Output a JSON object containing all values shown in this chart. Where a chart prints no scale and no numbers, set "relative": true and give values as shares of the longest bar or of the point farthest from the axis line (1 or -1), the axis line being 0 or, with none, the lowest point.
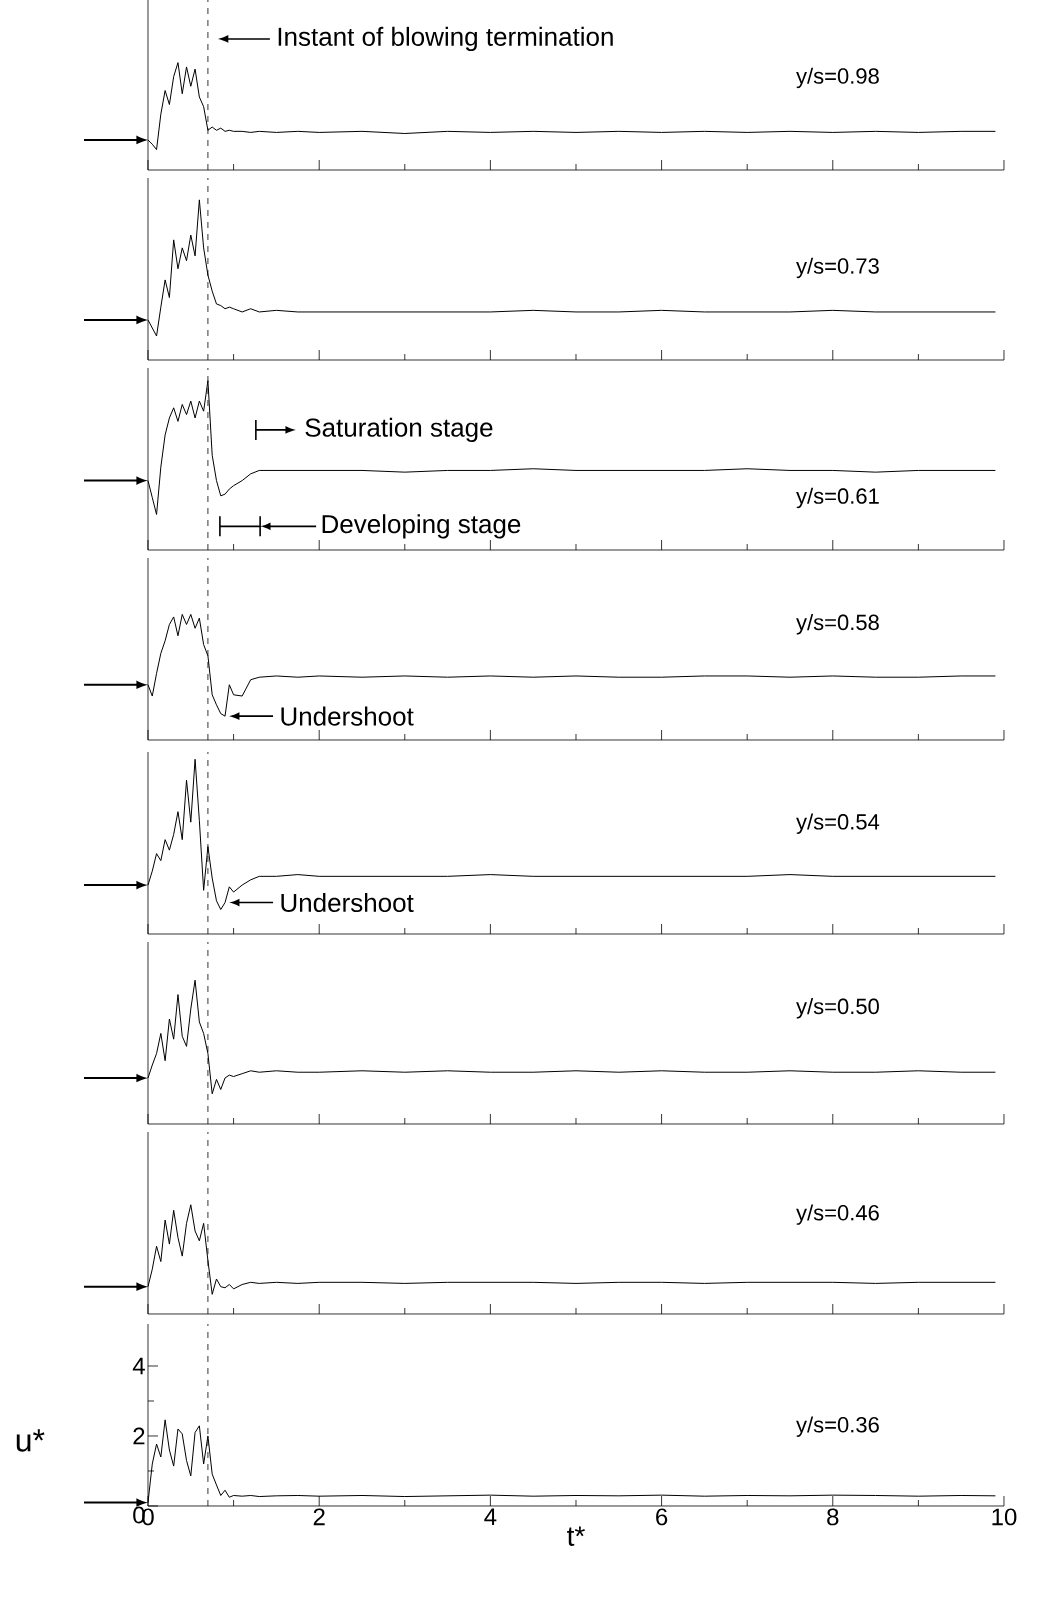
{
  "chart_data": [
    {
      "type": "line",
      "title": "y/s=0.98",
      "relative": true,
      "x": [
        0,
        0.05,
        0.1,
        0.15,
        0.2,
        0.25,
        0.3,
        0.35,
        0.4,
        0.45,
        0.5,
        0.55,
        0.6,
        0.65,
        0.7,
        0.75,
        0.8,
        0.85,
        0.9,
        0.95,
        1.0,
        1.1,
        1.2,
        1.3,
        1.5,
        1.75,
        2,
        2.5,
        3,
        3.5,
        4,
        4.5,
        5,
        5.5,
        6,
        6.5,
        7,
        7.5,
        8,
        8.5,
        9,
        9.5,
        9.9
      ],
      "series": [
        {
          "color": "#000000",
          "values": [
            0.28,
            0.24,
            0.19,
            0.52,
            0.74,
            0.61,
            0.87,
            1,
            0.71,
            0.96,
            0.78,
            0.94,
            0.68,
            0.59,
            0.37,
            0.4,
            0.37,
            0.39,
            0.36,
            0.37,
            0.36,
            0.36,
            0.35,
            0.36,
            0.35,
            0.36,
            0.35,
            0.36,
            0.34,
            0.36,
            0.35,
            0.36,
            0.35,
            0.36,
            0.35,
            0.36,
            0.35,
            0.36,
            0.35,
            0.36,
            0.35,
            0.36,
            0.36
          ]
        }
      ],
      "xlim": [
        0,
        10
      ],
      "xticks": [
        0,
        {
          "value": 1,
          "label": null
        },
        2,
        {
          "value": 3,
          "label": null
        },
        4,
        {
          "value": 5,
          "label": null
        },
        6,
        {
          "value": 7,
          "label": null
        },
        8,
        {
          "value": 9,
          "label": null
        },
        10
      ],
      "tick_labels": false,
      "ref_lines": [
        {
          "axis": "x",
          "value": 0.7,
          "label": "Instant of blowing termination",
          "line_style": "dashed"
        }
      ]
    },
    {
      "type": "line",
      "title": "y/s=0.73",
      "relative": true,
      "x": [
        0,
        0.05,
        0.1,
        0.15,
        0.2,
        0.25,
        0.3,
        0.35,
        0.4,
        0.45,
        0.5,
        0.55,
        0.6,
        0.65,
        0.7,
        0.75,
        0.8,
        0.85,
        0.9,
        0.95,
        1.0,
        1.1,
        1.2,
        1.3,
        1.5,
        1.75,
        2,
        2.5,
        3,
        3.5,
        4,
        4.5,
        5,
        5.5,
        6,
        6.5,
        7,
        7.5,
        8,
        8.5,
        9,
        9.5,
        9.9
      ],
      "series": [
        {
          "color": "#000000",
          "values": [
            0.25,
            0.2,
            0.15,
            0.33,
            0.5,
            0.39,
            0.75,
            0.57,
            0.7,
            0.62,
            0.78,
            0.65,
            1,
            0.7,
            0.53,
            0.43,
            0.35,
            0.34,
            0.32,
            0.33,
            0.32,
            0.3,
            0.32,
            0.3,
            0.31,
            0.3,
            0.3,
            0.3,
            0.3,
            0.3,
            0.3,
            0.31,
            0.3,
            0.3,
            0.31,
            0.3,
            0.3,
            0.3,
            0.31,
            0.3,
            0.3,
            0.3,
            0.3
          ]
        }
      ],
      "xlim": [
        0,
        10
      ],
      "xticks": [
        0,
        {
          "value": 1,
          "label": null
        },
        2,
        {
          "value": 3,
          "label": null
        },
        4,
        {
          "value": 5,
          "label": null
        },
        6,
        {
          "value": 7,
          "label": null
        },
        8,
        {
          "value": 9,
          "label": null
        },
        10
      ],
      "tick_labels": false,
      "ref_lines": [
        {
          "axis": "x",
          "value": 0.7,
          "line_style": "dashed"
        }
      ]
    },
    {
      "type": "line",
      "title": "y/s=0.61",
      "relative": true,
      "x": [
        0,
        0.05,
        0.1,
        0.15,
        0.2,
        0.25,
        0.3,
        0.35,
        0.4,
        0.45,
        0.5,
        0.55,
        0.6,
        0.65,
        0.7,
        0.75,
        0.8,
        0.85,
        0.9,
        0.95,
        1.0,
        1.1,
        1.2,
        1.3,
        1.5,
        1.75,
        2,
        2.5,
        3,
        3.5,
        4,
        4.5,
        5,
        5.5,
        6,
        6.5,
        7,
        7.5,
        8,
        8.5,
        9,
        9.5,
        9.9
      ],
      "series": [
        {
          "color": "#000000",
          "values": [
            0.41,
            0.31,
            0.21,
            0.49,
            0.68,
            0.78,
            0.84,
            0.76,
            0.86,
            0.8,
            0.88,
            0.78,
            0.88,
            0.82,
            1,
            0.56,
            0.41,
            0.32,
            0.33,
            0.36,
            0.38,
            0.41,
            0.45,
            0.47,
            0.47,
            0.47,
            0.47,
            0.47,
            0.46,
            0.47,
            0.47,
            0.48,
            0.47,
            0.47,
            0.47,
            0.47,
            0.48,
            0.47,
            0.47,
            0.46,
            0.47,
            0.47,
            0.47
          ]
        }
      ],
      "xlim": [
        0,
        10
      ],
      "xticks": [
        0,
        {
          "value": 1,
          "label": null
        },
        2,
        {
          "value": 3,
          "label": null
        },
        4,
        {
          "value": 5,
          "label": null
        },
        6,
        {
          "value": 7,
          "label": null
        },
        8,
        {
          "value": 9,
          "label": null
        },
        10
      ],
      "tick_labels": false,
      "ref_lines": [
        {
          "axis": "x",
          "value": 0.7,
          "line_style": "dashed"
        }
      ],
      "annotations": [
        "Saturation stage",
        "Developing stage"
      ]
    },
    {
      "type": "line",
      "title": "y/s=0.58",
      "relative": true,
      "x": [
        0,
        0.05,
        0.1,
        0.15,
        0.2,
        0.25,
        0.3,
        0.35,
        0.4,
        0.45,
        0.5,
        0.55,
        0.6,
        0.65,
        0.7,
        0.75,
        0.8,
        0.85,
        0.9,
        0.95,
        1.0,
        1.1,
        1.2,
        1.3,
        1.5,
        1.75,
        2,
        2.5,
        3,
        3.5,
        4,
        4.5,
        5,
        5.5,
        6,
        6.5,
        7,
        7.5,
        8,
        8.5,
        9,
        9.5,
        9.9
      ],
      "series": [
        {
          "color": "#000000",
          "values": [
            0.44,
            0.35,
            0.53,
            0.69,
            0.79,
            0.92,
            0.98,
            0.83,
            1,
            0.92,
            1,
            0.89,
            0.97,
            0.76,
            0.67,
            0.36,
            0.28,
            0.21,
            0.19,
            0.44,
            0.36,
            0.35,
            0.48,
            0.5,
            0.51,
            0.5,
            0.51,
            0.5,
            0.51,
            0.5,
            0.51,
            0.5,
            0.51,
            0.5,
            0.5,
            0.51,
            0.51,
            0.5,
            0.51,
            0.5,
            0.5,
            0.51,
            0.51
          ]
        }
      ],
      "xlim": [
        0,
        10
      ],
      "xticks": [
        0,
        {
          "value": 1,
          "label": null
        },
        2,
        {
          "value": 3,
          "label": null
        },
        4,
        {
          "value": 5,
          "label": null
        },
        6,
        {
          "value": 7,
          "label": null
        },
        8,
        {
          "value": 9,
          "label": null
        },
        10
      ],
      "tick_labels": false,
      "ref_lines": [
        {
          "axis": "x",
          "value": 0.7,
          "line_style": "dashed"
        }
      ],
      "annotations": [
        {
          "text": "Undershoot",
          "x": 0.9,
          "y": 0.19
        }
      ]
    },
    {
      "type": "line",
      "title": "y/s=0.54",
      "relative": true,
      "x": [
        0,
        0.05,
        0.1,
        0.15,
        0.2,
        0.25,
        0.3,
        0.35,
        0.4,
        0.45,
        0.5,
        0.55,
        0.6,
        0.65,
        0.7,
        0.75,
        0.8,
        0.85,
        0.9,
        0.95,
        1.0,
        1.1,
        1.2,
        1.3,
        1.5,
        1.75,
        2,
        2.5,
        3,
        3.5,
        4,
        4.5,
        5,
        5.5,
        6,
        6.5,
        7,
        7.5,
        8,
        8.5,
        9,
        9.5,
        9.9
      ],
      "series": [
        {
          "color": "#000000",
          "values": [
            0.28,
            0.36,
            0.46,
            0.42,
            0.54,
            0.48,
            0.57,
            0.7,
            0.54,
            0.88,
            0.64,
            1,
            0.65,
            0.25,
            0.5,
            0.32,
            0.19,
            0.14,
            0.18,
            0.27,
            0.24,
            0.28,
            0.31,
            0.33,
            0.33,
            0.34,
            0.33,
            0.33,
            0.33,
            0.33,
            0.34,
            0.33,
            0.33,
            0.33,
            0.33,
            0.33,
            0.33,
            0.34,
            0.33,
            0.33,
            0.33,
            0.33,
            0.33
          ]
        }
      ],
      "xlim": [
        0,
        10
      ],
      "xticks": [
        0,
        {
          "value": 1,
          "label": null
        },
        2,
        {
          "value": 3,
          "label": null
        },
        4,
        {
          "value": 5,
          "label": null
        },
        6,
        {
          "value": 7,
          "label": null
        },
        8,
        {
          "value": 9,
          "label": null
        },
        10
      ],
      "tick_labels": false,
      "ref_lines": [
        {
          "axis": "x",
          "value": 0.7,
          "line_style": "dashed"
        }
      ],
      "annotations": [
        {
          "text": "Undershoot",
          "x": 0.9,
          "y": 0.18
        }
      ]
    },
    {
      "type": "line",
      "title": "y/s=0.50",
      "relative": true,
      "x": [
        0,
        0.05,
        0.1,
        0.15,
        0.2,
        0.25,
        0.3,
        0.35,
        0.4,
        0.45,
        0.5,
        0.55,
        0.6,
        0.65,
        0.7,
        0.75,
        0.8,
        0.85,
        0.9,
        0.95,
        1.0,
        1.1,
        1.2,
        1.3,
        1.5,
        1.75,
        2,
        2.5,
        3,
        3.5,
        4,
        4.5,
        5,
        5.5,
        6,
        6.5,
        7,
        7.5,
        8,
        8.5,
        9,
        9.5,
        9.9
      ],
      "series": [
        {
          "color": "#000000",
          "values": [
            0.32,
            0.41,
            0.49,
            0.63,
            0.44,
            0.73,
            0.59,
            0.9,
            0.61,
            0.54,
            0.8,
            1,
            0.71,
            0.63,
            0.49,
            0.21,
            0.31,
            0.24,
            0.32,
            0.34,
            0.33,
            0.35,
            0.37,
            0.36,
            0.37,
            0.36,
            0.36,
            0.37,
            0.36,
            0.37,
            0.36,
            0.36,
            0.37,
            0.36,
            0.37,
            0.36,
            0.36,
            0.37,
            0.36,
            0.36,
            0.37,
            0.36,
            0.36
          ]
        }
      ],
      "xlim": [
        0,
        10
      ],
      "xticks": [
        0,
        {
          "value": 1,
          "label": null
        },
        2,
        {
          "value": 3,
          "label": null
        },
        4,
        {
          "value": 5,
          "label": null
        },
        6,
        {
          "value": 7,
          "label": null
        },
        8,
        {
          "value": 9,
          "label": null
        },
        10
      ],
      "tick_labels": false,
      "ref_lines": [
        {
          "axis": "x",
          "value": 0.7,
          "line_style": "dashed"
        }
      ]
    },
    {
      "type": "line",
      "title": "y/s=0.46",
      "relative": true,
      "x": [
        0,
        0.05,
        0.1,
        0.15,
        0.2,
        0.25,
        0.3,
        0.35,
        0.4,
        0.45,
        0.5,
        0.55,
        0.6,
        0.65,
        0.7,
        0.75,
        0.8,
        0.85,
        0.9,
        0.95,
        1.0,
        1.1,
        1.2,
        1.3,
        1.5,
        1.75,
        2,
        2.5,
        3,
        3.5,
        4,
        4.5,
        5,
        5.5,
        6,
        6.5,
        7,
        7.5,
        8,
        8.5,
        9,
        9.5,
        9.9
      ],
      "series": [
        {
          "color": "#000000",
          "values": [
            0.25,
            0.41,
            0.62,
            0.48,
            0.86,
            0.64,
            0.95,
            0.7,
            0.53,
            0.83,
            1,
            0.76,
            0.67,
            0.83,
            0.49,
            0.18,
            0.32,
            0.25,
            0.24,
            0.27,
            0.23,
            0.27,
            0.29,
            0.28,
            0.29,
            0.28,
            0.29,
            0.29,
            0.28,
            0.29,
            0.29,
            0.29,
            0.28,
            0.29,
            0.29,
            0.28,
            0.29,
            0.29,
            0.29,
            0.28,
            0.29,
            0.29,
            0.29
          ]
        }
      ],
      "xlim": [
        0,
        10
      ],
      "xticks": [
        0,
        {
          "value": 1,
          "label": null
        },
        2,
        {
          "value": 3,
          "label": null
        },
        4,
        {
          "value": 5,
          "label": null
        },
        6,
        {
          "value": 7,
          "label": null
        },
        8,
        {
          "value": 9,
          "label": null
        },
        10
      ],
      "tick_labels": false,
      "ref_lines": [
        {
          "axis": "x",
          "value": 0.7,
          "line_style": "dashed"
        }
      ]
    },
    {
      "type": "line",
      "title": "y/s=0.36",
      "xlabel": "t*",
      "ylabel": "u*",
      "x": [
        0,
        0.05,
        0.1,
        0.15,
        0.2,
        0.25,
        0.3,
        0.35,
        0.4,
        0.45,
        0.5,
        0.55,
        0.6,
        0.65,
        0.7,
        0.75,
        0.8,
        0.85,
        0.9,
        0.95,
        1.0,
        1.1,
        1.2,
        1.3,
        1.5,
        1.75,
        2,
        2.5,
        3,
        3.5,
        4,
        4.5,
        5,
        5.5,
        6,
        6.5,
        7,
        7.5,
        8,
        8.5,
        9,
        9.5,
        9.9
      ],
      "series": [
        {
          "color": "#000000",
          "values": [
            0.1,
            1.2,
            1.77,
            1.4,
            2.46,
            1.6,
            1.14,
            2.2,
            2.06,
            1.3,
            0.86,
            2.1,
            2.29,
            1.2,
            2.0,
            0.91,
            0.6,
            0.3,
            0.45,
            0.25,
            0.3,
            0.28,
            0.3,
            0.27,
            0.29,
            0.3,
            0.28,
            0.3,
            0.27,
            0.29,
            0.31,
            0.28,
            0.3,
            0.29,
            0.31,
            0.28,
            0.3,
            0.29,
            0.31,
            0.3,
            0.28,
            0.3,
            0.29
          ]
        }
      ],
      "xlim": [
        0,
        10
      ],
      "ylim": [
        0,
        5.2
      ],
      "xticks": [
        0,
        {
          "value": 1,
          "label": null
        },
        2,
        {
          "value": 3,
          "label": null
        },
        4,
        {
          "value": 5,
          "label": null
        },
        6,
        {
          "value": 7,
          "label": null
        },
        8,
        {
          "value": 9,
          "label": null
        },
        10
      ],
      "yticks": [
        0,
        {
          "value": 1,
          "label": null
        },
        2,
        {
          "value": 3,
          "label": null
        },
        4
      ],
      "ref_lines": [
        {
          "axis": "x",
          "value": 0.7,
          "line_style": "dashed"
        }
      ]
    }
  ]
}
